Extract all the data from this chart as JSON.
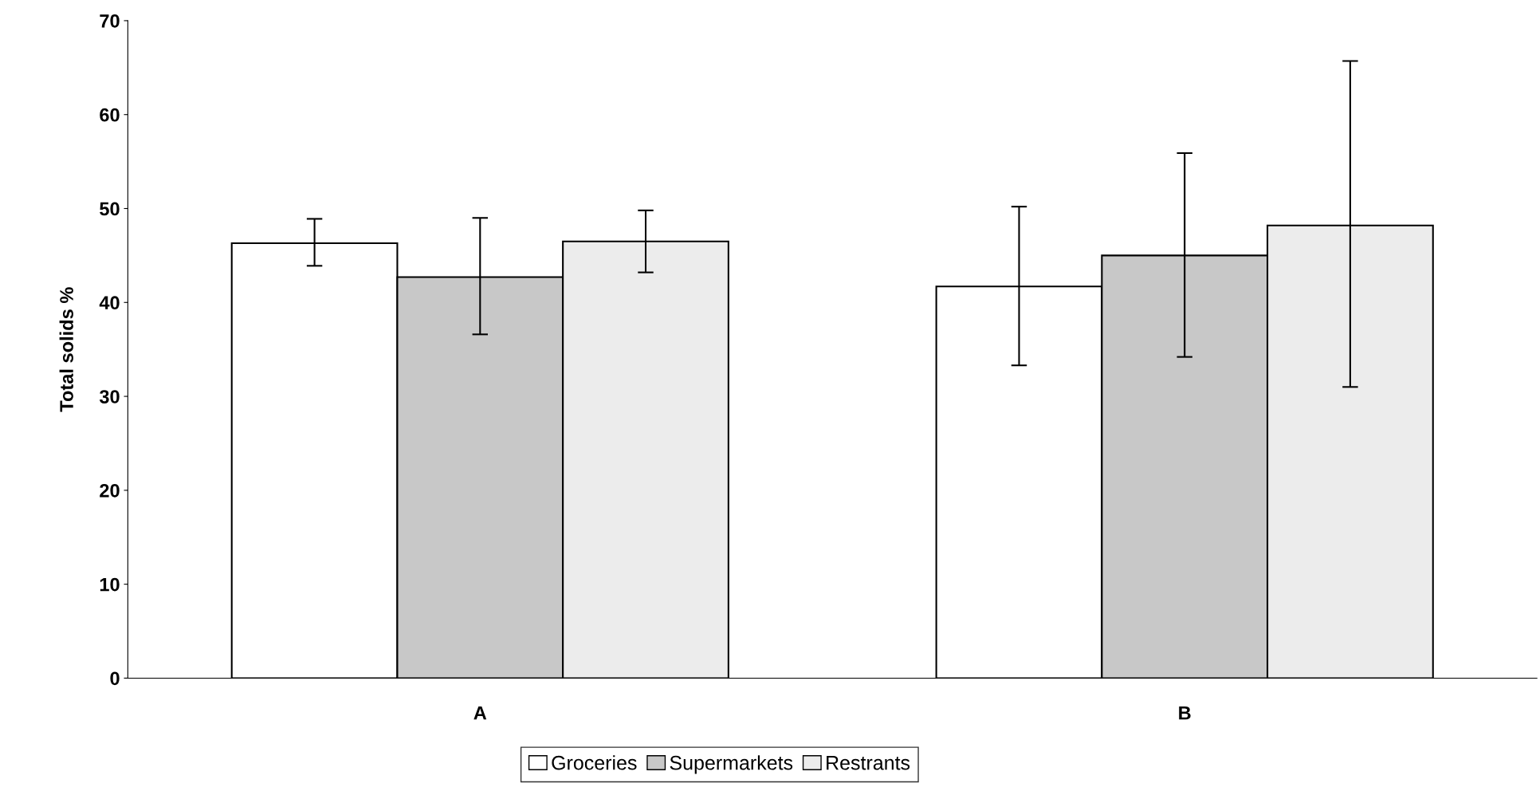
{
  "chart_data": {
    "type": "bar",
    "ylabel": "Total solids %",
    "categories": [
      "A",
      "B"
    ],
    "series": [
      {
        "name": "Groceries",
        "color": "#ffffff",
        "values": [
          46.3,
          41.7
        ],
        "errors": [
          [
            43.9,
            48.9
          ],
          [
            33.3,
            50.2
          ]
        ]
      },
      {
        "name": "Supermarkets",
        "color": "#c8c8c8",
        "values": [
          42.7,
          45.0
        ],
        "errors": [
          [
            36.6,
            49.0
          ],
          [
            34.2,
            55.9
          ]
        ]
      },
      {
        "name": "Restrants",
        "color": "#ececec",
        "values": [
          46.5,
          48.2
        ],
        "errors": [
          [
            43.2,
            49.8
          ],
          [
            31.0,
            65.7
          ]
        ]
      }
    ],
    "ylim": [
      0,
      70
    ],
    "yticks": [
      0,
      10,
      20,
      30,
      40,
      50,
      60,
      70
    ],
    "grid": false,
    "legend": "bottom"
  }
}
